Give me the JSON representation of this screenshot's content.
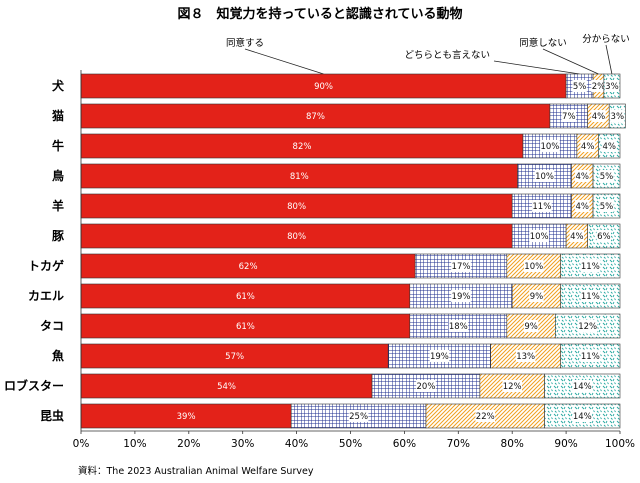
{
  "chart_data": {
    "type": "bar",
    "orientation": "horizontal",
    "stacked": true,
    "title": "図８　知覚力を持っていると認識されている動物",
    "source": "資料：The 2023 Australian Animal Welfare Survey",
    "categories": [
      "犬",
      "猫",
      "牛",
      "鳥",
      "羊",
      "豚",
      "トカゲ",
      "カエル",
      "タコ",
      "魚",
      "ロブスター",
      "昆虫"
    ],
    "series": [
      {
        "name": "同意する",
        "color": "#e32219",
        "pattern": "solid",
        "values": [
          90,
          87,
          82,
          81,
          80,
          80,
          62,
          61,
          61,
          57,
          54,
          39
        ]
      },
      {
        "name": "どちらとも言えない",
        "color": "#1f2f8f",
        "pattern": "grid",
        "values": [
          5,
          7,
          10,
          10,
          11,
          10,
          17,
          19,
          18,
          19,
          20,
          25
        ]
      },
      {
        "name": "同意しない",
        "color": "#f0a020",
        "pattern": "diagonal",
        "values": [
          2,
          4,
          4,
          4,
          4,
          4,
          10,
          9,
          9,
          13,
          12,
          22
        ]
      },
      {
        "name": "分からない",
        "color": "#25a8a0",
        "pattern": "dashes",
        "values": [
          3,
          3,
          4,
          5,
          5,
          6,
          11,
          11,
          12,
          11,
          14,
          14
        ]
      }
    ],
    "value_labels": [
      [
        "90%",
        "5%",
        "2%",
        "3%"
      ],
      [
        "87%",
        "7%",
        "4%",
        "3%"
      ],
      [
        "82%",
        "10%",
        "4%",
        "4%"
      ],
      [
        "81%",
        "10%",
        "4%",
        "5%"
      ],
      [
        "80%",
        "11%",
        "4%",
        "5%"
      ],
      [
        "80%",
        "10%",
        "4%",
        "6%"
      ],
      [
        "62%",
        "17%",
        "10%",
        "11%"
      ],
      [
        "61%",
        "19%",
        "9%",
        "11%"
      ],
      [
        "61%",
        "18%",
        "9%",
        "12%"
      ],
      [
        "57%",
        "19%",
        "13%",
        "11%"
      ],
      [
        "54%",
        "20%",
        "12%",
        "14%"
      ],
      [
        "39%",
        "25%",
        "22%",
        "14%"
      ]
    ],
    "xlim": [
      0,
      100
    ],
    "xticks": [
      "0%",
      "10%",
      "20%",
      "30%",
      "40%",
      "50%",
      "60%",
      "70%",
      "80%",
      "90%",
      "100%"
    ],
    "legend_placement": "top-right, callouts pointing to first bar",
    "grid": false
  }
}
